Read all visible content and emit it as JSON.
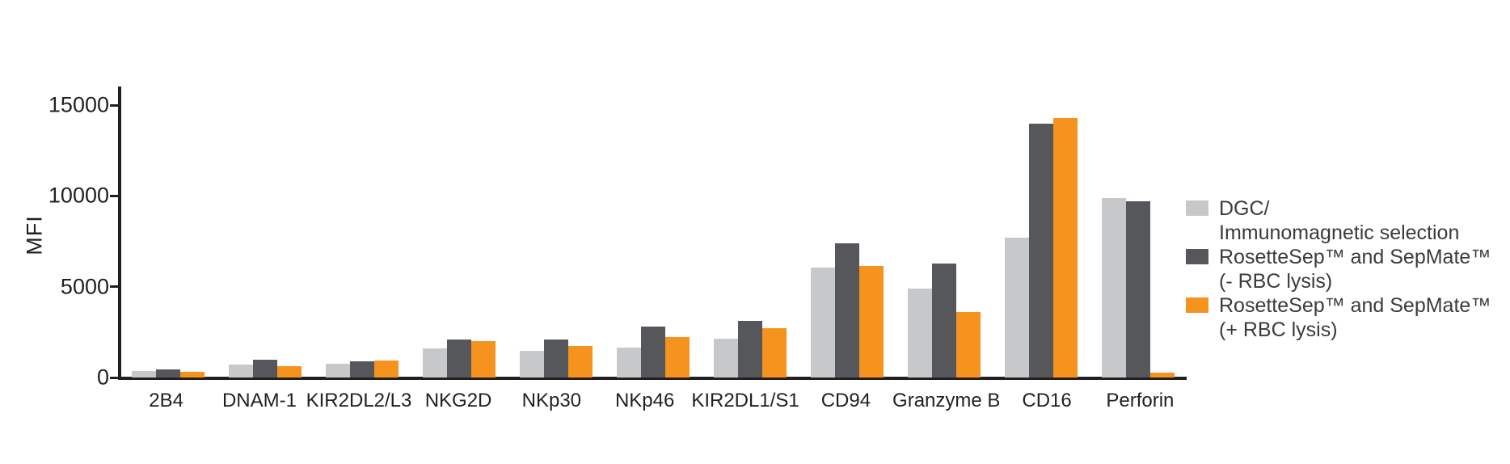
{
  "chart_data": {
    "type": "bar",
    "title": "",
    "xlabel": "",
    "ylabel": "MFI",
    "ylim": [
      0,
      16000
    ],
    "y_ticks": [
      0,
      5000,
      10000,
      15000
    ],
    "grid": false,
    "legend_position": "right",
    "categories": [
      "2B4",
      "DNAM-1",
      "KIR2DL2/L3",
      "NKG2D",
      "NKp30",
      "NKp46",
      "KIR2DL1/S1",
      "CD94",
      "Granzyme B",
      "CD16",
      "Perforin"
    ],
    "series": [
      {
        "name": "DGC/ Immunomagnetic selection",
        "legend_lines": [
          "DGC/",
          "Immunomagnetic selection"
        ],
        "color": "#c7c8ca",
        "values": [
          360,
          700,
          760,
          1600,
          1450,
          1650,
          2140,
          6050,
          4890,
          7700,
          9880
        ]
      },
      {
        "name": "RosetteSep™ and SepMate™ (- RBC lysis)",
        "legend_lines": [
          "RosetteSep™ and SepMate™",
          "(- RBC lysis)"
        ],
        "color": "#55575b",
        "values": [
          450,
          980,
          890,
          2100,
          2100,
          2800,
          3120,
          7390,
          6270,
          14000,
          9700
        ]
      },
      {
        "name": "RosetteSep™ and SepMate™ (+ RBC lysis)",
        "legend_lines": [
          "RosetteSep™ and SepMate™",
          "(+ RBC lysis)"
        ],
        "color": "#f6921e",
        "values": [
          310,
          620,
          940,
          2000,
          1740,
          2230,
          2720,
          6140,
          3600,
          14290,
          270
        ]
      }
    ]
  },
  "colors": {
    "axis": "#231f20",
    "tick_label": "#231f20",
    "category_label": "#231f20",
    "legend_text": "#3b3b3d",
    "background": "#ffffff"
  }
}
